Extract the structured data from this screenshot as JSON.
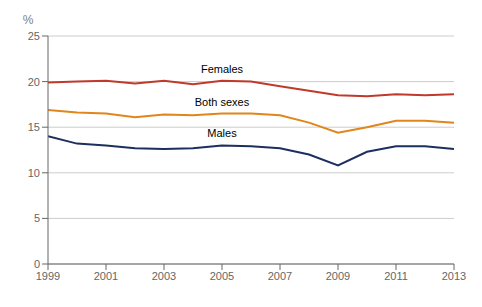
{
  "chart_data": {
    "type": "line",
    "y_label": "%",
    "x": [
      1999,
      2000,
      2001,
      2002,
      2003,
      2004,
      2005,
      2006,
      2007,
      2008,
      2009,
      2010,
      2011,
      2012,
      2013
    ],
    "series": [
      {
        "name": "Females",
        "color": "#c0392b",
        "values": [
          19.9,
          20.0,
          20.1,
          19.8,
          20.1,
          19.7,
          20.1,
          20.0,
          19.5,
          19.0,
          18.5,
          18.4,
          18.6,
          18.5,
          18.6
        ]
      },
      {
        "name": "Both sexes",
        "color": "#e0861a",
        "values": [
          16.9,
          16.6,
          16.5,
          16.1,
          16.4,
          16.3,
          16.5,
          16.5,
          16.3,
          15.5,
          14.4,
          15.0,
          15.7,
          15.7,
          15.5
        ]
      },
      {
        "name": "Males",
        "color": "#1c2f5e",
        "values": [
          14.0,
          13.2,
          13.0,
          12.7,
          12.6,
          12.7,
          13.0,
          12.9,
          12.7,
          12.0,
          10.8,
          12.3,
          12.9,
          12.9,
          12.6
        ]
      }
    ],
    "xlim": [
      1999,
      2013
    ],
    "xticks": [
      1999,
      2001,
      2003,
      2005,
      2007,
      2009,
      2011,
      2013
    ],
    "ylim": [
      0,
      25
    ],
    "yticks": [
      0,
      5,
      10,
      15,
      20,
      25
    ],
    "grid": true
  }
}
